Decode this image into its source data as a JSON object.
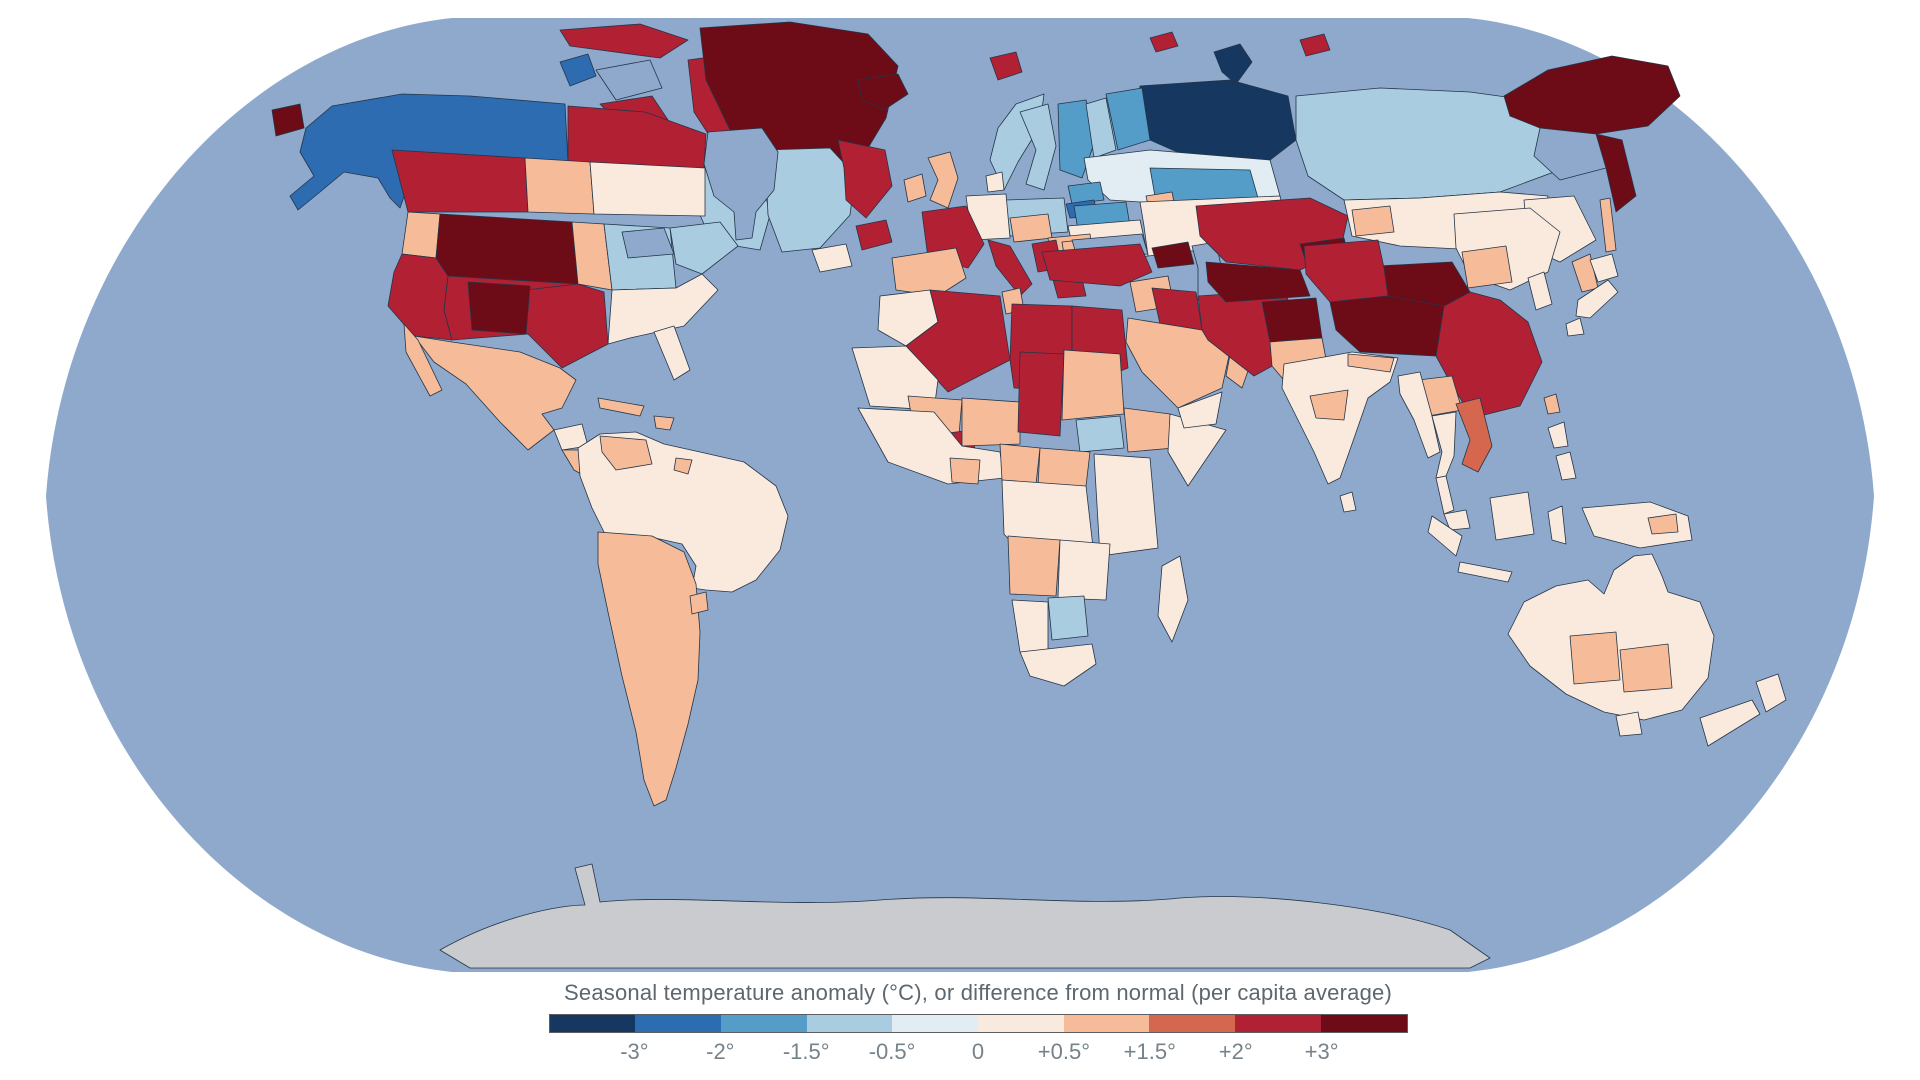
{
  "page": {
    "background": "#ffffff"
  },
  "map": {
    "projection": "Robinson world map choropleth",
    "ocean_color": "#8ea9cc",
    "antarctica_color": "#c9cbce",
    "coastline_color": "#1d2b3a",
    "border_color": "#56687c",
    "no_data_color": "#8ea9cc"
  },
  "legend": {
    "title": "Seasonal temperature anomaly (°C), or difference from normal (per capita average)",
    "stops": [
      {
        "range": "-3° or colder",
        "color": "#163760"
      },
      {
        "range": "-3° to -2°",
        "color": "#2d6cb1"
      },
      {
        "range": "-2° to -1.5°",
        "color": "#549dc8"
      },
      {
        "range": "-1.5° to -0.5°",
        "color": "#a9cce1"
      },
      {
        "range": "-0.5° to 0°",
        "color": "#e1ecf3"
      },
      {
        "range": "0° to +0.5°",
        "color": "#faeadd"
      },
      {
        "range": "+0.5° to +1.5°",
        "color": "#f6bb98"
      },
      {
        "range": "+1.5° to +2°",
        "color": "#d6674f"
      },
      {
        "range": "+2° to +3°",
        "color": "#b22034"
      },
      {
        "range": "+3° or warmer",
        "color": "#6d0b17"
      }
    ],
    "ticks": [
      "-3°",
      "-2°",
      "-1.5°",
      "-0.5°",
      "0",
      "+0.5°",
      "+1.5°",
      "+2°",
      "+3°"
    ]
  },
  "regions": {
    "seward": {
      "n": "Seward Peninsula / Bering tip",
      "v": "+3° or warmer",
      "c": "#6d0b17"
    },
    "alaska_nw_canada": {
      "n": "Alaska, Yukon & NW Canada",
      "v": "-3° to -2°",
      "c": "#2d6cb1"
    },
    "banks_island": {
      "n": "Banks Island",
      "v": "-3° to -2°",
      "c": "#2d6cb1"
    },
    "victoria_island": {
      "n": "Victoria Island",
      "v": "no data",
      "c": "#8ea9cc"
    },
    "arctic_islands": {
      "n": "Canadian Arctic islands",
      "v": "+2° to +3°",
      "c": "#b22034"
    },
    "greenland": {
      "n": "Greenland",
      "v": "+3° or warmer",
      "c": "#6d0b17"
    },
    "nunavut": {
      "n": "Nunavut mainland",
      "v": "+2° to +3°",
      "c": "#b22034"
    },
    "ontario": {
      "n": "Ontario",
      "v": "-1.5° to -0.5°",
      "c": "#a9cce1"
    },
    "quebec": {
      "n": "Quebec",
      "v": "-1.5° to -0.5°",
      "c": "#a9cce1"
    },
    "labrador": {
      "n": "Labrador",
      "v": "+2° to +3°",
      "c": "#b22034"
    },
    "newfoundland": {
      "n": "Newfoundland",
      "v": "+2° to +3°",
      "c": "#b22034"
    },
    "maritimes": {
      "n": "Maritimes",
      "v": "0° to +0.5°",
      "c": "#faeadd"
    },
    "bc": {
      "n": "British Columbia",
      "v": "+2° to +3°",
      "c": "#b22034"
    },
    "alberta": {
      "n": "Alberta",
      "v": "+0.5° to +1.5°",
      "c": "#f6bb98"
    },
    "prairies": {
      "n": "Saskatchewan & Manitoba",
      "v": "0° to +0.5°",
      "c": "#faeadd"
    },
    "pacific_nw": {
      "n": "Pacific Northwest coast",
      "v": "+0.5° to +1.5°",
      "c": "#f6bb98"
    },
    "mountain_west": {
      "n": "US Mountain West",
      "v": "+3° or warmer",
      "c": "#6d0b17"
    },
    "california": {
      "n": "California & Southwest",
      "v": "+2° to +3°",
      "c": "#b22034"
    },
    "four_corners": {
      "n": "Four Corners",
      "v": "+3° or warmer",
      "c": "#6d0b17"
    },
    "texas": {
      "n": "Texas & southern plains",
      "v": "+2° to +3°",
      "c": "#b22034"
    },
    "plains": {
      "n": "Great Plains",
      "v": "+0.5° to +1.5°",
      "c": "#f6bb98"
    },
    "midwest": {
      "n": "US Midwest",
      "v": "-1.5° to -0.5°",
      "c": "#a9cce1"
    },
    "northeast": {
      "n": "US Northeast",
      "v": "-1.5° to -0.5°",
      "c": "#a9cce1"
    },
    "southeast": {
      "n": "US Southeast",
      "v": "0° to +0.5°",
      "c": "#faeadd"
    },
    "florida": {
      "n": "Florida",
      "v": "0° to +0.5°",
      "c": "#faeadd"
    },
    "mexico": {
      "n": "Mexico",
      "v": "+0.5° to +1.5°",
      "c": "#f6bb98"
    },
    "yucatan": {
      "n": "Yucatan",
      "v": "0° to +0.5°",
      "c": "#faeadd"
    },
    "central_america": {
      "n": "Central America",
      "v": "+0.5° to +1.5°",
      "c": "#f6bb98"
    },
    "cuba": {
      "n": "Cuba",
      "v": "+0.5° to +1.5°",
      "c": "#f6bb98"
    },
    "hispaniola": {
      "n": "Hispaniola",
      "v": "+0.5° to +1.5°",
      "c": "#f6bb98"
    },
    "south_america": {
      "n": "South America core",
      "v": "0° to +0.5°",
      "c": "#faeadd"
    },
    "venezuela": {
      "n": "Venezuela",
      "v": "+0.5° to +1.5°",
      "c": "#f6bb98"
    },
    "french_guiana": {
      "n": "French Guiana",
      "v": "+0.5° to +1.5°",
      "c": "#f6bb98"
    },
    "bolivia": {
      "n": "Bolivia",
      "v": "+0.5° to +1.5°",
      "c": "#f6bb98"
    },
    "southern_cone": {
      "n": "Chile & Argentina",
      "v": "+0.5° to +1.5°",
      "c": "#f6bb98"
    },
    "uruguay": {
      "n": "Uruguay",
      "v": "+0.5° to +1.5°",
      "c": "#f6bb98"
    },
    "iceland": {
      "n": "Iceland",
      "v": "+3° or warmer",
      "c": "#6d0b17"
    },
    "svalbard": {
      "n": "Svalbard",
      "v": "+2° to +3°",
      "c": "#b22034"
    },
    "great_britain": {
      "n": "Great Britain",
      "v": "+0.5° to +1.5°",
      "c": "#f6bb98"
    },
    "ireland": {
      "n": "Ireland",
      "v": "+0.5° to +1.5°",
      "c": "#f6bb98"
    },
    "norway": {
      "n": "Norway",
      "v": "-1.5° to -0.5°",
      "c": "#a9cce1"
    },
    "sweden": {
      "n": "Sweden",
      "v": "-1.5° to -0.5°",
      "c": "#a9cce1"
    },
    "finland": {
      "n": "Finland",
      "v": "-2° to -1.5°",
      "c": "#549dc8"
    },
    "denmark": {
      "n": "Denmark",
      "v": "0° to +0.5°",
      "c": "#faeadd"
    },
    "baltics_north": {
      "n": "Estonia & Latvia",
      "v": "-2° to -1.5°",
      "c": "#549dc8"
    },
    "lithuania": {
      "n": "Lithuania",
      "v": "-3° to -2°",
      "c": "#2d6cb1"
    },
    "belarus": {
      "n": "Belarus",
      "v": "-2° to -1.5°",
      "c": "#549dc8"
    },
    "poland": {
      "n": "Poland",
      "v": "-1.5° to -0.5°",
      "c": "#a9cce1"
    },
    "germany": {
      "n": "Germany",
      "v": "0° to +0.5°",
      "c": "#faeadd"
    },
    "france": {
      "n": "France",
      "v": "+2° to +3°",
      "c": "#b22034"
    },
    "iberia": {
      "n": "Spain & Portugal",
      "v": "+0.5° to +1.5°",
      "c": "#f6bb98"
    },
    "italy": {
      "n": "Italy",
      "v": "+2° to +3°",
      "c": "#b22034"
    },
    "alpine": {
      "n": "Central Europe",
      "v": "+0.5° to +1.5°",
      "c": "#f6bb98"
    },
    "balkans": {
      "n": "Balkans",
      "v": "+0.5° to +1.5°",
      "c": "#f6bb98"
    },
    "croatia_serbia": {
      "n": "Croatia & Serbia",
      "v": "+2° to +3°",
      "c": "#b22034"
    },
    "romania": {
      "n": "Romania & Bulgaria",
      "v": "+0.5° to +1.5°",
      "c": "#f6bb98"
    },
    "greece": {
      "n": "Greece",
      "v": "+2° to +3°",
      "c": "#b22034"
    },
    "ukraine": {
      "n": "Ukraine",
      "v": "0° to +0.5°",
      "c": "#faeadd"
    },
    "nw_russia": {
      "n": "Northwest Russia",
      "v": "-3° or colder",
      "c": "#163760"
    },
    "arkhangelsk": {
      "n": "Arkhangelsk",
      "v": "-2° to -1.5°",
      "c": "#549dc8"
    },
    "karelia": {
      "n": "Karelia",
      "v": "-1.5° to -0.5°",
      "c": "#a9cce1"
    },
    "european_russia": {
      "n": "European Russia",
      "v": "-0.5° to 0°",
      "c": "#e1ecf3"
    },
    "russia_mid_belt": {
      "n": "Volga belt",
      "v": "-2° to -1.5°",
      "c": "#549dc8"
    },
    "moscow_region": {
      "n": "Moscow region",
      "v": "+0.5° to +1.5°",
      "c": "#f6bb98"
    },
    "russia_south_belt": {
      "n": "Southern Russia",
      "v": "0° to +0.5°",
      "c": "#faeadd"
    },
    "novaya_zemlya": {
      "n": "Novaya Zemlya",
      "v": "-3° or colder",
      "c": "#163760"
    },
    "ru_arctic_islands": {
      "n": "Russian Arctic islands",
      "v": "+2° to +3°",
      "c": "#b22034"
    },
    "caucasus": {
      "n": "Caucasus",
      "v": "+3° or warmer",
      "c": "#6d0b17"
    },
    "turkey": {
      "n": "Turkey",
      "v": "+2° to +3°",
      "c": "#b22034"
    },
    "morocco": {
      "n": "Morocco",
      "v": "0° to +0.5°",
      "c": "#faeadd"
    },
    "mauritania": {
      "n": "Mauritania & W. Sahara",
      "v": "0° to +0.5°",
      "c": "#faeadd"
    },
    "algeria": {
      "n": "Algeria",
      "v": "+2° to +3°",
      "c": "#b22034"
    },
    "tunisia": {
      "n": "Tunisia",
      "v": "+0.5° to +1.5°",
      "c": "#f6bb98"
    },
    "libya": {
      "n": "Libya",
      "v": "+2° to +3°",
      "c": "#b22034"
    },
    "egypt": {
      "n": "Egypt",
      "v": "+2° to +3°",
      "c": "#b22034"
    },
    "mali": {
      "n": "Mali",
      "v": "+0.5° to +1.5°",
      "c": "#f6bb98"
    },
    "burkina_faso": {
      "n": "Burkina Faso",
      "v": "+2° to +3°",
      "c": "#b22034"
    },
    "niger": {
      "n": "Niger",
      "v": "+0.5° to +1.5°",
      "c": "#f6bb98"
    },
    "chad": {
      "n": "Chad",
      "v": "+2° to +3°",
      "c": "#b22034"
    },
    "sudan": {
      "n": "Sudan",
      "v": "+0.5° to +1.5°",
      "c": "#f6bb98"
    },
    "south_sudan": {
      "n": "South Sudan",
      "v": "-1.5° to -0.5°",
      "c": "#a9cce1"
    },
    "west_africa": {
      "n": "West Africa coast",
      "v": "0° to +0.5°",
      "c": "#faeadd"
    },
    "ghana": {
      "n": "Ghana & Ivory Coast",
      "v": "+0.5° to +1.5°",
      "c": "#f6bb98"
    },
    "nigeria": {
      "n": "Nigeria",
      "v": "+0.5° to +1.5°",
      "c": "#f6bb98"
    },
    "cameroon_car": {
      "n": "Cameroon & CAR",
      "v": "+0.5° to +1.5°",
      "c": "#f6bb98"
    },
    "ethiopia": {
      "n": "Ethiopia",
      "v": "+0.5° to +1.5°",
      "c": "#f6bb98"
    },
    "somalia": {
      "n": "Somalia",
      "v": "0° to +0.5°",
      "c": "#faeadd"
    },
    "congo_basin": {
      "n": "Congo basin",
      "v": "0° to +0.5°",
      "c": "#faeadd"
    },
    "east_africa": {
      "n": "East Africa",
      "v": "0° to +0.5°",
      "c": "#faeadd"
    },
    "angola": {
      "n": "Angola",
      "v": "+0.5° to +1.5°",
      "c": "#f6bb98"
    },
    "zambia_zimbabwe": {
      "n": "Zambia & Zimbabwe",
      "v": "0° to +0.5°",
      "c": "#faeadd"
    },
    "namibia": {
      "n": "Namibia",
      "v": "0° to +0.5°",
      "c": "#faeadd"
    },
    "botswana": {
      "n": "Botswana",
      "v": "-1.5° to -0.5°",
      "c": "#a9cce1"
    },
    "south_africa": {
      "n": "South Africa",
      "v": "0° to +0.5°",
      "c": "#faeadd"
    },
    "madagascar": {
      "n": "Madagascar",
      "v": "0° to +0.5°",
      "c": "#faeadd"
    },
    "syria_jordan": {
      "n": "Syria & Jordan",
      "v": "+0.5° to +1.5°",
      "c": "#f6bb98"
    },
    "iraq": {
      "n": "Iraq",
      "v": "+2° to +3°",
      "c": "#b22034"
    },
    "saudi_arabia": {
      "n": "Saudi Arabia",
      "v": "+0.5° to +1.5°",
      "c": "#f6bb98"
    },
    "yemen": {
      "n": "Yemen",
      "v": "0° to +0.5°",
      "c": "#faeadd"
    },
    "oman": {
      "n": "Oman",
      "v": "+0.5° to +1.5°",
      "c": "#f6bb98"
    },
    "iran": {
      "n": "Iran",
      "v": "+2° to +3°",
      "c": "#b22034"
    },
    "kazakhstan": {
      "n": "Kazakhstan",
      "v": "+2° to +3°",
      "c": "#b22034"
    },
    "uzbekistan_turkmenistan": {
      "n": "Uzbekistan & Turkmenistan",
      "v": "+3° or warmer",
      "c": "#6d0b17"
    },
    "kyrgyzstan_tajikistan": {
      "n": "Kyrgyzstan & Tajikistan",
      "v": "+3° or warmer",
      "c": "#6d0b17"
    },
    "afghanistan": {
      "n": "Afghanistan",
      "v": "+3° or warmer",
      "c": "#6d0b17"
    },
    "pakistan": {
      "n": "Pakistan",
      "v": "+0.5° to +1.5°",
      "c": "#f6bb98"
    },
    "siberia": {
      "n": "Central Siberia",
      "v": "-1.5° to -0.5°",
      "c": "#a9cce1"
    },
    "south_siberia": {
      "n": "Southern Siberia",
      "v": "0° to +0.5°",
      "c": "#faeadd"
    },
    "altai": {
      "n": "Altai",
      "v": "+0.5° to +1.5°",
      "c": "#f6bb98"
    },
    "chukotka": {
      "n": "Chukotka",
      "v": "+3° or warmer",
      "c": "#6d0b17"
    },
    "kamchatka": {
      "n": "Kamchatka",
      "v": "+3° or warmer",
      "c": "#6d0b17"
    },
    "magadan": {
      "n": "Magadan",
      "v": "no data",
      "c": "#8ea9cc"
    },
    "amur": {
      "n": "Amur region",
      "v": "0° to +0.5°",
      "c": "#faeadd"
    },
    "sakhalin_primorye": {
      "n": "Sakhalin & Primorye",
      "v": "+0.5° to +1.5°",
      "c": "#f6bb98"
    },
    "mongolia": {
      "n": "Mongolia",
      "v": "+3° or warmer",
      "c": "#6d0b17"
    },
    "xinjiang": {
      "n": "Xinjiang",
      "v": "+2° to +3°",
      "c": "#b22034"
    },
    "tibet_qinghai": {
      "n": "Tibet & Qinghai",
      "v": "+3° or warmer",
      "c": "#6d0b17"
    },
    "east_china": {
      "n": "Eastern China",
      "v": "+2° to +3°",
      "c": "#b22034"
    },
    "ne_china": {
      "n": "Northeast China",
      "v": "0° to +0.5°",
      "c": "#faeadd"
    },
    "inner_mongolia": {
      "n": "Inner Mongolia",
      "v": "+0.5° to +1.5°",
      "c": "#f6bb98"
    },
    "yunnan": {
      "n": "Yunnan",
      "v": "+0.5° to +1.5°",
      "c": "#f6bb98"
    },
    "korea": {
      "n": "Korea",
      "v": "0° to +0.5°",
      "c": "#faeadd"
    },
    "japan": {
      "n": "Japan",
      "v": "0° to +0.5°",
      "c": "#faeadd"
    },
    "taiwan": {
      "n": "Taiwan",
      "v": "+0.5° to +1.5°",
      "c": "#f6bb98"
    },
    "india": {
      "n": "India",
      "v": "0° to +0.5°",
      "c": "#faeadd"
    },
    "india_interior": {
      "n": "Central India",
      "v": "+0.5° to +1.5°",
      "c": "#f6bb98"
    },
    "nepal": {
      "n": "Nepal",
      "v": "+0.5° to +1.5°",
      "c": "#f6bb98"
    },
    "sri_lanka": {
      "n": "Sri Lanka",
      "v": "0° to +0.5°",
      "c": "#faeadd"
    },
    "myanmar": {
      "n": "Myanmar",
      "v": "0° to +0.5°",
      "c": "#faeadd"
    },
    "thailand": {
      "n": "Thailand",
      "v": "0° to +0.5°",
      "c": "#faeadd"
    },
    "vietnam_laos": {
      "n": "Vietnam & Laos",
      "v": "+1.5° to +2°",
      "c": "#d6674f"
    },
    "malaysia": {
      "n": "Malaysia",
      "v": "0° to +0.5°",
      "c": "#faeadd"
    },
    "indonesia": {
      "n": "Indonesia",
      "v": "0° to +0.5°",
      "c": "#faeadd"
    },
    "new_guinea": {
      "n": "New Guinea",
      "v": "0° to +0.5°",
      "c": "#faeadd"
    },
    "png_highlands": {
      "n": "PNG highlands",
      "v": "+0.5° to +1.5°",
      "c": "#f6bb98"
    },
    "philippines": {
      "n": "Philippines",
      "v": "0° to +0.5°",
      "c": "#faeadd"
    },
    "australia": {
      "n": "Australia",
      "v": "0° to +0.5°",
      "c": "#faeadd"
    },
    "south_australia": {
      "n": "South Australia",
      "v": "+0.5° to +1.5°",
      "c": "#f6bb98"
    },
    "new_south_wales": {
      "n": "New South Wales",
      "v": "+0.5° to +1.5°",
      "c": "#f6bb98"
    },
    "tasmania": {
      "n": "Tasmania",
      "v": "0° to +0.5°",
      "c": "#faeadd"
    },
    "new_zealand": {
      "n": "New Zealand",
      "v": "0° to +0.5°",
      "c": "#faeadd"
    }
  }
}
